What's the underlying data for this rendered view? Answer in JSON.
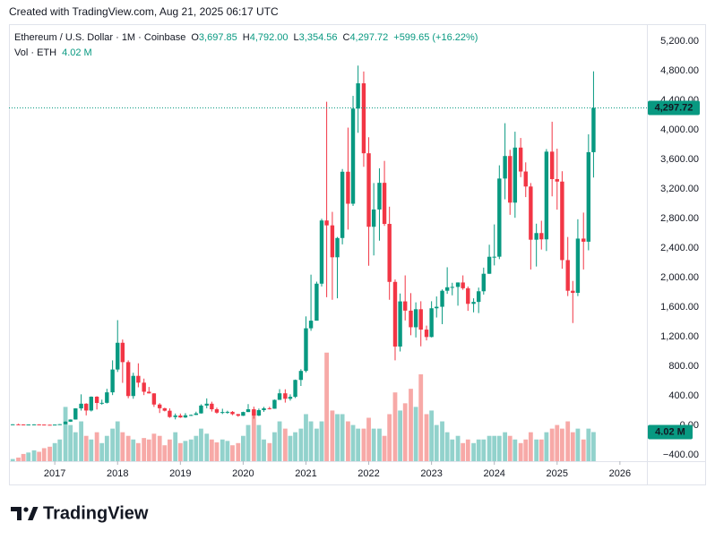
{
  "header": {
    "created": "Created with TradingView.com, Aug 21, 2025 06:17 UTC",
    "brand": "TradingView"
  },
  "chart_data": {
    "type": "candlestick",
    "legend": {
      "symbol": "Ethereum / U.S. Dollar · 1M · Coinbase",
      "fields": [
        {
          "key": "O",
          "value": "3,697.85"
        },
        {
          "key": "H",
          "value": "4,792.00"
        },
        {
          "key": "L",
          "value": "3,354.56"
        },
        {
          "key": "C",
          "value": "4,297.72"
        }
      ],
      "change": "+599.65 (+16.22%)",
      "volume_name": "Vol · ETH",
      "volume_value": "4.02 M",
      "last_price": "4,297.72"
    },
    "up_color": "#089981",
    "down_color": "#f23645",
    "volume_up_color": "#92d2cc",
    "volume_down_color": "#f7a9a7",
    "grid": false,
    "xlim": [
      2016.27,
      2026.43
    ],
    "xticks": [
      2017,
      2018,
      2019,
      2020,
      2021,
      2022,
      2023,
      2024,
      2025,
      2026
    ],
    "ylim": [
      -485,
      5394
    ],
    "yticks": [
      {
        "value": 5200,
        "label": "5,200.00"
      },
      {
        "value": 4800,
        "label": "4,800.00"
      },
      {
        "value": 4400,
        "label": "4,400.00"
      },
      {
        "value": 4000,
        "label": "4,000.00"
      },
      {
        "value": 3600,
        "label": "3,600.00"
      },
      {
        "value": 3200,
        "label": "3,200.00"
      },
      {
        "value": 2800,
        "label": "2,800.00"
      },
      {
        "value": 2400,
        "label": "2,400.00"
      },
      {
        "value": 2000,
        "label": "2,000.00"
      },
      {
        "value": 1600,
        "label": "1,600.00"
      },
      {
        "value": 1200,
        "label": "1,200.00"
      },
      {
        "value": 800,
        "label": "800.00"
      },
      {
        "value": 400,
        "label": "400.00"
      },
      {
        "value": 0,
        "label": "0.00"
      },
      {
        "value": -400,
        "label": "−400.00"
      }
    ],
    "x": [
      2016.33,
      2016.42,
      2016.5,
      2016.58,
      2016.67,
      2016.75,
      2016.83,
      2016.92,
      2017.0,
      2017.08,
      2017.17,
      2017.25,
      2017.33,
      2017.42,
      2017.5,
      2017.58,
      2017.67,
      2017.75,
      2017.83,
      2017.92,
      2018.0,
      2018.08,
      2018.17,
      2018.25,
      2018.33,
      2018.42,
      2018.5,
      2018.58,
      2018.67,
      2018.75,
      2018.83,
      2018.92,
      2019.0,
      2019.08,
      2019.17,
      2019.25,
      2019.33,
      2019.42,
      2019.5,
      2019.58,
      2019.67,
      2019.75,
      2019.83,
      2019.92,
      2020.0,
      2020.08,
      2020.17,
      2020.25,
      2020.33,
      2020.42,
      2020.5,
      2020.58,
      2020.67,
      2020.75,
      2020.83,
      2020.92,
      2021.0,
      2021.08,
      2021.17,
      2021.25,
      2021.33,
      2021.42,
      2021.5,
      2021.58,
      2021.67,
      2021.75,
      2021.83,
      2021.92,
      2022.0,
      2022.08,
      2022.17,
      2022.25,
      2022.33,
      2022.42,
      2022.5,
      2022.58,
      2022.67,
      2022.75,
      2022.83,
      2022.92,
      2023.0,
      2023.08,
      2023.17,
      2023.25,
      2023.33,
      2023.42,
      2023.5,
      2023.58,
      2023.67,
      2023.75,
      2023.83,
      2023.92,
      2024.0,
      2024.08,
      2024.17,
      2024.25,
      2024.33,
      2024.42,
      2024.5,
      2024.58,
      2024.67,
      2024.75,
      2024.83,
      2024.92,
      2025.0,
      2025.08,
      2025.17,
      2025.25,
      2025.33,
      2025.42,
      2025.5,
      2025.58
    ],
    "ohlc": [
      [
        12,
        15,
        10,
        14
      ],
      [
        14,
        21,
        11,
        12.5
      ],
      [
        12.5,
        14,
        10,
        11.5
      ],
      [
        11.5,
        12,
        10,
        11.8
      ],
      [
        11.8,
        14,
        11,
        13.2
      ],
      [
        13.2,
        14,
        10.6,
        11
      ],
      [
        11,
        11.5,
        7.9,
        8.5
      ],
      [
        8.5,
        9,
        6.5,
        8
      ],
      [
        8,
        11.6,
        7.9,
        10.7
      ],
      [
        10.7,
        16.3,
        10.4,
        15.7
      ],
      [
        15.7,
        55,
        15.2,
        50
      ],
      [
        50,
        81,
        47,
        79
      ],
      [
        79,
        232,
        78,
        230
      ],
      [
        230,
        420,
        200,
        293
      ],
      [
        293,
        300,
        135,
        201
      ],
      [
        201,
        392,
        188,
        388
      ],
      [
        388,
        395,
        215,
        303
      ],
      [
        303,
        348,
        280,
        305
      ],
      [
        305,
        495,
        296,
        447
      ],
      [
        447,
        880,
        410,
        756
      ],
      [
        756,
        1424,
        723,
        1118
      ],
      [
        1118,
        1162,
        575,
        856
      ],
      [
        856,
        880,
        367,
        397
      ],
      [
        397,
        712,
        360,
        670
      ],
      [
        670,
        840,
        515,
        578
      ],
      [
        578,
        633,
        410,
        455
      ],
      [
        455,
        520,
        430,
        433
      ],
      [
        433,
        435,
        250,
        282
      ],
      [
        282,
        300,
        167,
        232
      ],
      [
        232,
        238,
        189,
        198
      ],
      [
        198,
        230,
        102,
        113
      ],
      [
        113,
        160,
        81,
        133
      ],
      [
        133,
        160,
        101,
        107
      ],
      [
        107,
        165,
        101,
        136
      ],
      [
        136,
        147,
        128,
        141
      ],
      [
        141,
        185,
        140,
        162
      ],
      [
        162,
        285,
        160,
        268
      ],
      [
        268,
        365,
        231,
        293
      ],
      [
        293,
        320,
        187,
        218
      ],
      [
        218,
        240,
        159,
        172
      ],
      [
        172,
        225,
        153,
        180
      ],
      [
        180,
        198,
        156,
        183
      ],
      [
        183,
        193,
        138,
        152
      ],
      [
        152,
        155,
        117,
        130
      ],
      [
        130,
        185,
        127,
        180
      ],
      [
        180,
        288,
        180,
        218
      ],
      [
        218,
        253,
        90,
        133
      ],
      [
        133,
        228,
        125,
        206
      ],
      [
        206,
        250,
        183,
        231
      ],
      [
        231,
        252,
        215,
        225
      ],
      [
        225,
        350,
        224,
        345
      ],
      [
        345,
        490,
        345,
        434
      ],
      [
        434,
        488,
        308,
        360
      ],
      [
        360,
        420,
        335,
        386
      ],
      [
        386,
        620,
        370,
        615
      ],
      [
        615,
        760,
        533,
        737
      ],
      [
        737,
        1475,
        717,
        1314
      ],
      [
        1314,
        2040,
        1280,
        1417
      ],
      [
        1417,
        1945,
        1430,
        1918
      ],
      [
        1918,
        2797,
        1880,
        2773
      ],
      [
        2773,
        4380,
        1735,
        2707
      ],
      [
        2707,
        2890,
        1700,
        2275
      ],
      [
        2275,
        2550,
        1720,
        2536
      ],
      [
        2536,
        3470,
        2450,
        3433
      ],
      [
        3433,
        4030,
        2650,
        3000
      ],
      [
        3000,
        4460,
        2970,
        4288
      ],
      [
        4288,
        4870,
        3960,
        4630
      ],
      [
        4630,
        4790,
        3500,
        3683
      ],
      [
        3683,
        3900,
        2160,
        2688
      ],
      [
        2688,
        3280,
        2300,
        2922
      ],
      [
        2922,
        3480,
        2500,
        3283
      ],
      [
        3283,
        3580,
        2700,
        2727
      ],
      [
        2727,
        2960,
        1700,
        1942
      ],
      [
        1942,
        1975,
        880,
        1067
      ],
      [
        1067,
        1785,
        1000,
        1678
      ],
      [
        1678,
        2030,
        1420,
        1553
      ],
      [
        1553,
        1790,
        1220,
        1328
      ],
      [
        1328,
        1665,
        1190,
        1572
      ],
      [
        1572,
        1680,
        1070,
        1296
      ],
      [
        1296,
        1350,
        1150,
        1196
      ],
      [
        1196,
        1680,
        1190,
        1585
      ],
      [
        1585,
        1745,
        1460,
        1605
      ],
      [
        1605,
        1840,
        1370,
        1822
      ],
      [
        1822,
        2140,
        1780,
        1869
      ],
      [
        1869,
        1930,
        1760,
        1874
      ],
      [
        1874,
        1935,
        1620,
        1934
      ],
      [
        1934,
        2030,
        1835,
        1856
      ],
      [
        1856,
        1880,
        1550,
        1645
      ],
      [
        1645,
        1720,
        1530,
        1671
      ],
      [
        1671,
        1865,
        1520,
        1815
      ],
      [
        1815,
        2135,
        1770,
        2052
      ],
      [
        2052,
        2445,
        2050,
        2282
      ],
      [
        2282,
        2720,
        2165,
        2283
      ],
      [
        2283,
        3520,
        2250,
        3341
      ],
      [
        3341,
        4090,
        3060,
        3646
      ],
      [
        3646,
        3730,
        2850,
        3015
      ],
      [
        3015,
        3975,
        2810,
        3760
      ],
      [
        3760,
        3890,
        3360,
        3436
      ],
      [
        3436,
        3560,
        3090,
        3233
      ],
      [
        3233,
        3280,
        2110,
        2513
      ],
      [
        2513,
        2730,
        2150,
        2603
      ],
      [
        2603,
        2770,
        2380,
        2518
      ],
      [
        2518,
        3740,
        2360,
        3705
      ],
      [
        3705,
        4110,
        3100,
        3333
      ],
      [
        3333,
        3745,
        2920,
        3300
      ],
      [
        3300,
        3440,
        2120,
        2237
      ],
      [
        2237,
        2550,
        1750,
        1822
      ],
      [
        1822,
        1955,
        1385,
        1794
      ],
      [
        1794,
        2790,
        1750,
        2528
      ],
      [
        2528,
        2880,
        2110,
        2486
      ],
      [
        2486,
        3940,
        2370,
        3698
      ],
      [
        3697.85,
        4792,
        3354.56,
        4297.72
      ]
    ],
    "volume": [
      0.3,
      0.5,
      1,
      1.2,
      1.5,
      1.3,
      1.8,
      2,
      2.5,
      3,
      7.5,
      5,
      4,
      5.5,
      3.5,
      3,
      4,
      2.5,
      3.5,
      4.5,
      5.5,
      4,
      3.5,
      3,
      2.5,
      3.2,
      3,
      3.8,
      3.5,
      2.2,
      3,
      4,
      2.5,
      2.8,
      3,
      3.5,
      4.5,
      3.8,
      3,
      2.6,
      3,
      2.8,
      2.2,
      2.5,
      3.5,
      5,
      7,
      5,
      3,
      2.5,
      4,
      5.5,
      4.5,
      3.5,
      4,
      4.5,
      6.5,
      5.5,
      4.5,
      5.5,
      15,
      7,
      6.5,
      6.5,
      5.5,
      5,
      4.5,
      4.5,
      6,
      4.5,
      4.5,
      3.5,
      6.5,
      9.5,
      7,
      8,
      10,
      7.5,
      12,
      6.5,
      7,
      5,
      5.5,
      4,
      3,
      3.5,
      2.5,
      3,
      2.5,
      3,
      3,
      3.5,
      3.5,
      3.5,
      4,
      3.5,
      3,
      2.5,
      3,
      4,
      3,
      3,
      4,
      4.5,
      5,
      4.5,
      5.5,
      4,
      4.5,
      3,
      4.5,
      4.02
    ]
  }
}
